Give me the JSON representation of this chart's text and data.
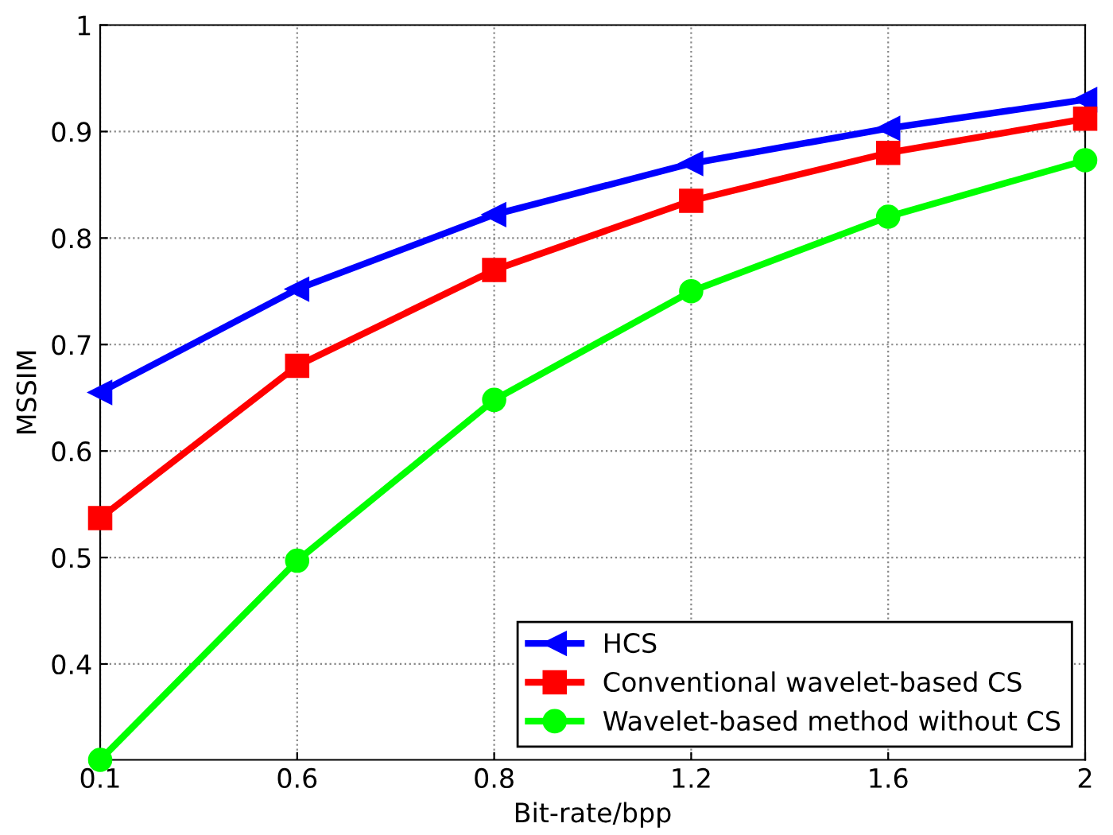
{
  "chart_data": {
    "type": "line",
    "xlabel": "Bit-rate/bpp",
    "ylabel": "MSSIM",
    "categories": [
      "0.1",
      "0.6",
      "0.8",
      "1.2",
      "1.6",
      "2"
    ],
    "series": [
      {
        "name": "HCS",
        "color": "#0000ff",
        "marker": "triangle",
        "values": [
          0.655,
          0.752,
          0.822,
          0.87,
          0.903,
          0.93
        ]
      },
      {
        "name": "Conventional wavelet-based CS",
        "color": "#ff0000",
        "marker": "square",
        "values": [
          0.537,
          0.68,
          0.77,
          0.835,
          0.88,
          0.912
        ]
      },
      {
        "name": "Wavelet-based method without CS",
        "color": "#00ff00",
        "marker": "circle",
        "values": [
          0.31,
          0.497,
          0.648,
          0.75,
          0.82,
          0.873
        ]
      }
    ],
    "ylim": [
      0.31,
      1
    ],
    "yticks": [
      0.4,
      0.5,
      0.6,
      0.7,
      0.8,
      0.9,
      1
    ],
    "grid": true,
    "legend": "bottom right",
    "line_style": "solid"
  }
}
